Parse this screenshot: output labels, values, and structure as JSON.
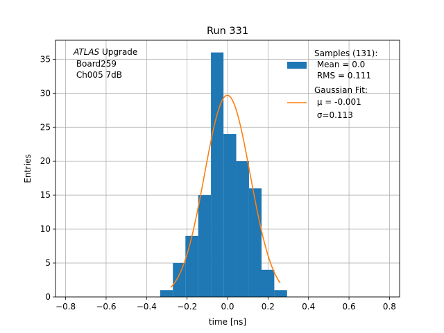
{
  "chart_data": {
    "type": "bar",
    "title": "Run 331",
    "xlabel": "time [ns]",
    "ylabel": "Entries",
    "xlim": [
      -0.85,
      0.85
    ],
    "ylim": [
      0,
      37.8
    ],
    "xticks": [
      -0.8,
      -0.6,
      -0.4,
      -0.2,
      0.0,
      0.2,
      0.4,
      0.6,
      0.8
    ],
    "xtick_labels": [
      "−0.8",
      "−0.6",
      "−0.4",
      "−0.2",
      "0.0",
      "0.2",
      "0.4",
      "0.6",
      "0.8"
    ],
    "yticks": [
      0,
      5,
      10,
      15,
      20,
      25,
      30,
      35
    ],
    "grid": true,
    "histogram": {
      "bin_edges": [
        -0.333,
        -0.27,
        -0.208,
        -0.145,
        -0.082,
        -0.02,
        0.043,
        0.106,
        0.168,
        0.231,
        0.294
      ],
      "counts": [
        1,
        5,
        9,
        15,
        36,
        24,
        20,
        16,
        4,
        1
      ],
      "color": "#1f77b4"
    },
    "gaussian_fit": {
      "mu": -0.001,
      "sigma": 0.113,
      "amplitude": 29.7,
      "x_range": [
        -0.28,
        0.26
      ],
      "color": "#ff7f0e"
    },
    "annotation": {
      "line1_italic": "ATLAS",
      "line1_rest": " Upgrade",
      "line2": " Board259",
      "line3": " Ch005 7dB"
    },
    "legend": {
      "position": "top-right",
      "samples": {
        "line1": "Samples (131):",
        "line2": " Mean = 0.0",
        "line3": " RMS = 0.111"
      },
      "fit": {
        "line1": "Gaussian Fit:",
        "line2": " μ = -0.001",
        "line3": " σ=0.113"
      }
    }
  }
}
